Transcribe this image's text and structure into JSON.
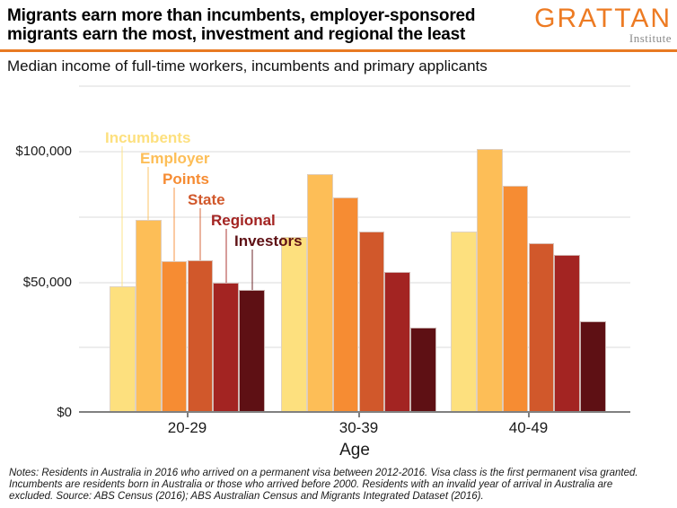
{
  "header": {
    "title_lines": [
      "Migrants earn more than incumbents, employer-sponsored",
      "migrants earn the most, investment and regional the least"
    ],
    "subtitle": "Median income of full-time workers, incumbents and primary applicants",
    "logo": {
      "brand": "GRATTAN",
      "tagline": "Institute"
    },
    "accent_color": "#E87A22"
  },
  "chart_data": {
    "type": "bar",
    "title": "Migrants earn more than incumbents, employer-sponsored migrants earn the most, investment and regional the least",
    "subtitle": "Median income of full-time workers, incumbents and primary applicants",
    "categories": [
      "20-29",
      "30-39",
      "40-49"
    ],
    "series": [
      {
        "name": "Incumbents",
        "color": "#FDE07E",
        "values": [
          48500,
          67500,
          69500
        ]
      },
      {
        "name": "Employer",
        "color": "#FDBE57",
        "values": [
          74000,
          91500,
          101000
        ]
      },
      {
        "name": "Points",
        "color": "#F68C33",
        "values": [
          58000,
          82500,
          87000
        ]
      },
      {
        "name": "State",
        "color": "#D1582B",
        "values": [
          58500,
          69500,
          65000
        ]
      },
      {
        "name": "Regional",
        "color": "#A32422",
        "values": [
          50000,
          54000,
          60500
        ]
      },
      {
        "name": "Investors",
        "color": "#5E1014",
        "values": [
          47000,
          32500,
          35000
        ]
      }
    ],
    "xlabel": "Age",
    "ylabel": "",
    "ylim": [
      0,
      125000
    ],
    "yticks": [
      {
        "value": 0,
        "label": "$0"
      },
      {
        "value": 50000,
        "label": "$50,000"
      },
      {
        "value": 100000,
        "label": "$100,000"
      }
    ],
    "gridline_values": [
      25000,
      50000,
      75000,
      100000,
      125000
    ],
    "grid": true,
    "legend_position": "stepped labels with leader lines above first bar group",
    "axis_color": "#808080",
    "gridline_color": "#ededed"
  },
  "notes": "Notes: Residents in Australia in 2016 who arrived on a permanent visa between 2012-2016. Visa class is the first permanent visa granted. Incumbents are residents born in Australia or those who arrived before 2000. Residents with an invalid year of arrival in Australia are excluded. Source: ABS Census (2016); ABS Australian Census and Migrants Integrated Dataset (2016)."
}
